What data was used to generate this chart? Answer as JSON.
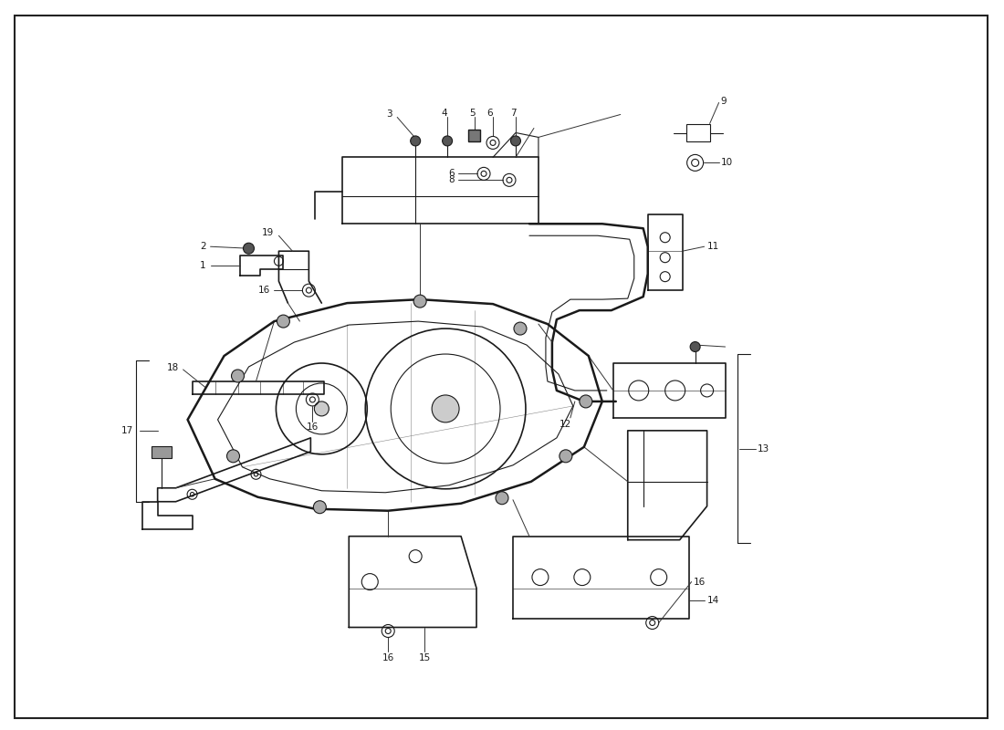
{
  "background_color": "#ffffff",
  "line_color": "#1a1a1a",
  "fig_width": 11.0,
  "fig_height": 8.0,
  "xlim": [
    0,
    11
  ],
  "ylim": [
    0,
    8
  ]
}
